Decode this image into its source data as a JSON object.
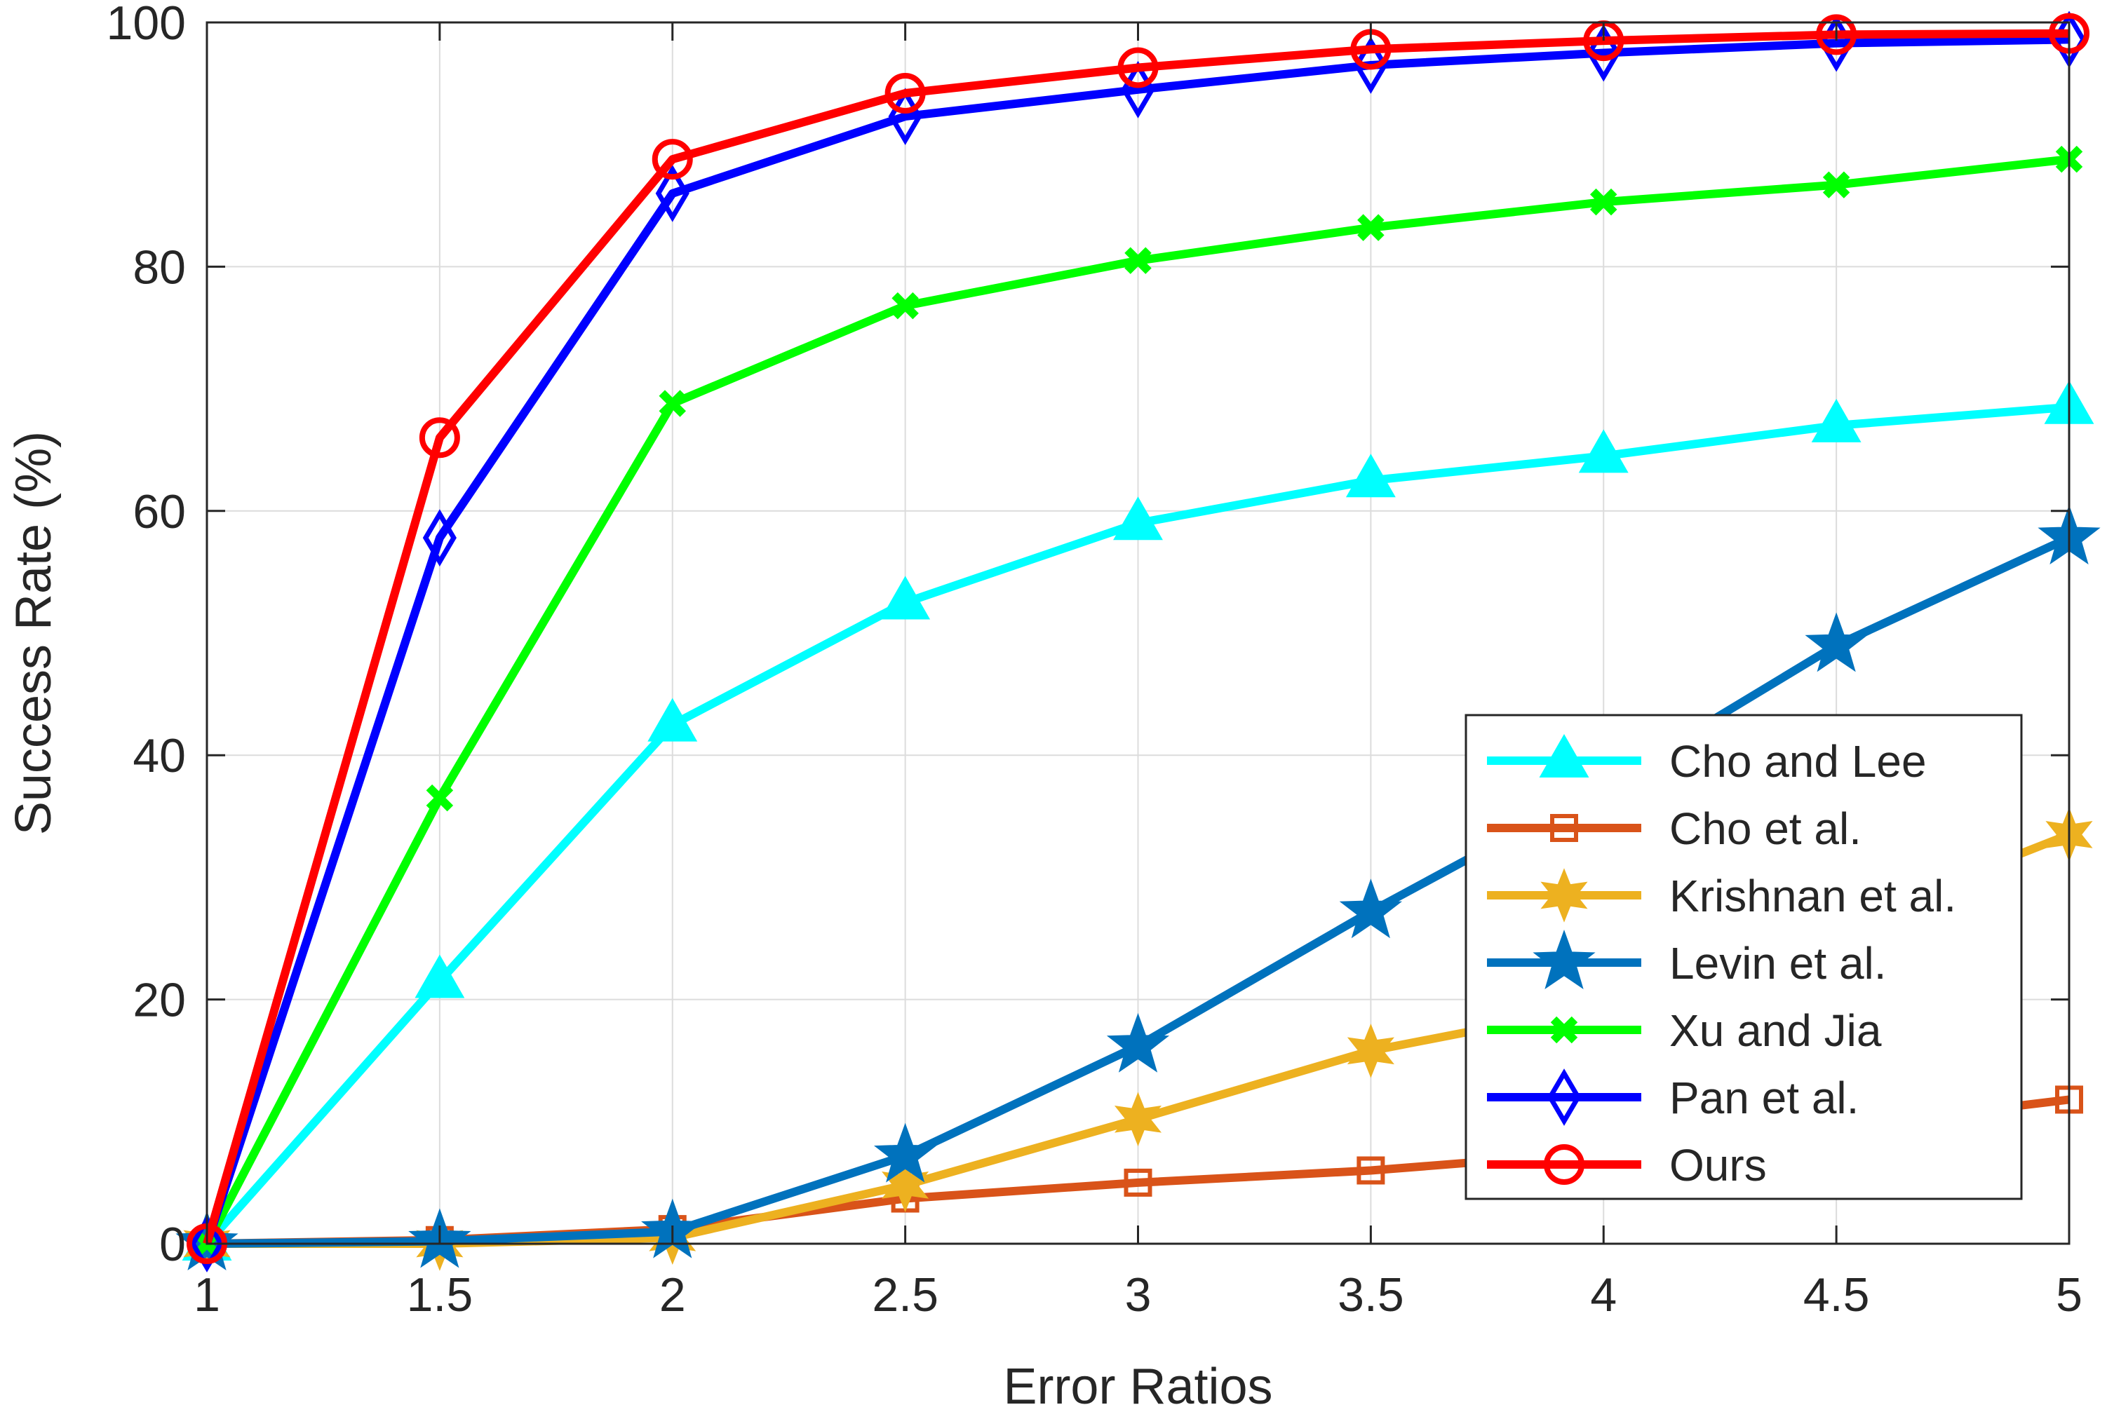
{
  "chart_data": {
    "type": "line",
    "title": "",
    "xlabel": "Error Ratios",
    "ylabel": "Success Rate (%)",
    "xlim": [
      1,
      5
    ],
    "ylim": [
      0,
      100
    ],
    "x": [
      1,
      1.5,
      2,
      2.5,
      3,
      3.5,
      4,
      4.5,
      5
    ],
    "xticks": [
      "1",
      "1.5",
      "2",
      "2.5",
      "3",
      "3.5",
      "4",
      "4.5",
      "5"
    ],
    "yticks": [
      "0",
      "20",
      "40",
      "60",
      "80",
      "100"
    ],
    "grid": true,
    "legend_position": "bottom-right",
    "series": [
      {
        "name": "Cho and Lee",
        "color": "#00FFFF",
        "marker": "triangle",
        "values": [
          0,
          21.5,
          42.5,
          52.5,
          59,
          62.5,
          64.5,
          67,
          68.5
        ]
      },
      {
        "name": "Cho et al.",
        "color": "#D95319",
        "marker": "square",
        "values": [
          0,
          0.3,
          1.2,
          3.7,
          5,
          6,
          7.5,
          9.5,
          11.8
        ]
      },
      {
        "name": "Krishnan et al.",
        "color": "#EDB120",
        "marker": "hexagram",
        "values": [
          0,
          0,
          0.5,
          4.8,
          10.2,
          15.8,
          19.5,
          26,
          33.5
        ]
      },
      {
        "name": "Levin et al.",
        "color": "#0072BD",
        "marker": "pentagram",
        "values": [
          0,
          0.2,
          1,
          7.2,
          16.2,
          27.2,
          37.5,
          49,
          57.8
        ]
      },
      {
        "name": "Xu and Jia",
        "color": "#00FF00",
        "marker": "x",
        "values": [
          0,
          36.5,
          68.8,
          76.8,
          80.5,
          83.2,
          85.3,
          86.7,
          88.8
        ]
      },
      {
        "name": "Pan et al.",
        "color": "#0000FF",
        "marker": "diamond",
        "values": [
          0,
          57.8,
          86,
          92.3,
          94.5,
          96.5,
          97.5,
          98.3,
          98.6
        ]
      },
      {
        "name": "Ours",
        "color": "#FF0000",
        "marker": "circle",
        "values": [
          0,
          66,
          88.8,
          94.2,
          96.3,
          97.8,
          98.5,
          99,
          99.1
        ]
      }
    ]
  }
}
